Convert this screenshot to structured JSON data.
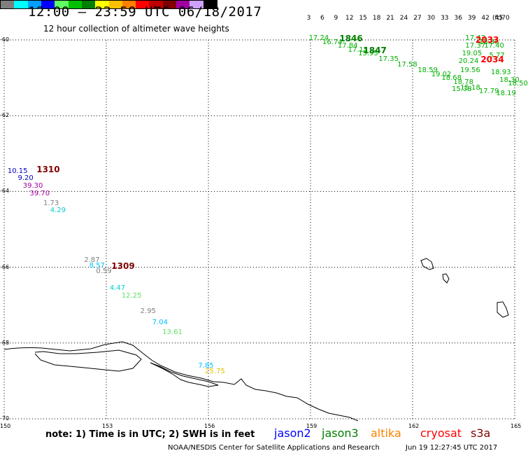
{
  "title": "12:00 – 23:59 UTC 06/18/2017",
  "subtitle": "12 hour collection of altimeter wave heights",
  "colorbar": {
    "unit": "(ft)",
    "ticks": [
      "3",
      "6",
      "9",
      "12",
      "15",
      "18",
      "21",
      "24",
      "27",
      "30",
      "33",
      "36",
      "39",
      "42",
      "45",
      "70"
    ],
    "colors": [
      "#7f7f7f",
      "#00ffff",
      "#00a0ff",
      "#0000ff",
      "#60ff60",
      "#00c000",
      "#008000",
      "#ffff00",
      "#ffc000",
      "#ff8000",
      "#ff0000",
      "#c00000",
      "#800000",
      "#a000a0",
      "#d0a0ff",
      "#000000"
    ]
  },
  "axes": {
    "lat_labels": [
      "-60",
      "-62",
      "-64",
      "-66",
      "-68",
      "-70"
    ],
    "lon_labels": [
      "150",
      "153",
      "156",
      "159",
      "162",
      "165"
    ]
  },
  "passes": [
    {
      "id": "1310",
      "color": "#800000",
      "lon": 150.95,
      "lat": -63.4
    },
    {
      "id": "1309",
      "color": "#800000",
      "lon": 153.15,
      "lat": -65.95
    },
    {
      "id": "1846",
      "color": "#008000",
      "lon": 159.85,
      "lat": -59.95
    },
    {
      "id": "1847",
      "color": "#008000",
      "lon": 160.55,
      "lat": -60.25
    },
    {
      "id": "2033",
      "color": "#ff0000",
      "lon": 163.85,
      "lat": -59.98
    },
    {
      "id": "2034",
      "color": "#ff0000",
      "lon": 164.0,
      "lat": -60.5
    }
  ],
  "wave_heights": [
    {
      "text": "10.15",
      "color": "#0000c0",
      "lon": 150.1,
      "lat": -63.45
    },
    {
      "text": "9.20",
      "color": "#0000c0",
      "lon": 150.4,
      "lat": -63.65
    },
    {
      "text": "39.30",
      "color": "#a000a0",
      "lon": 150.55,
      "lat": -63.85
    },
    {
      "text": "39.70",
      "color": "#a000a0",
      "lon": 150.75,
      "lat": -64.05
    },
    {
      "text": "1.73",
      "color": "#7f7f7f",
      "lon": 151.15,
      "lat": -64.3
    },
    {
      "text": "4.29",
      "color": "#00d0d0",
      "lon": 151.35,
      "lat": -64.5
    },
    {
      "text": "2.87",
      "color": "#7f7f7f",
      "lon": 152.35,
      "lat": -65.8
    },
    {
      "text": "8.57",
      "color": "#00c0ff",
      "lon": 152.5,
      "lat": -65.95
    },
    {
      "text": "0.59",
      "color": "#7f7f7f",
      "lon": 152.7,
      "lat": -66.1
    },
    {
      "text": "4.47",
      "color": "#00d0d0",
      "lon": 153.1,
      "lat": -66.55
    },
    {
      "text": "12.25",
      "color": "#60e060",
      "lon": 153.45,
      "lat": -66.75
    },
    {
      "text": "2.95",
      "color": "#7f7f7f",
      "lon": 154.0,
      "lat": -67.15
    },
    {
      "text": "7.04",
      "color": "#00c0ff",
      "lon": 154.35,
      "lat": -67.45
    },
    {
      "text": "13.61",
      "color": "#60e060",
      "lon": 154.65,
      "lat": -67.7
    },
    {
      "text": "7.85",
      "color": "#00c0ff",
      "lon": 155.7,
      "lat": -68.6
    },
    {
      "text": "25.75",
      "color": "#e0c000",
      "lon": 155.9,
      "lat": -68.75
    },
    {
      "text": "17.24",
      "color": "#00b000",
      "lon": 158.95,
      "lat": -59.95
    },
    {
      "text": "16.74",
      "color": "#00b000",
      "lon": 159.35,
      "lat": -60.05
    },
    {
      "text": "17.84",
      "color": "#00b000",
      "lon": 159.8,
      "lat": -60.15
    },
    {
      "text": "17.15",
      "color": "#00b000",
      "lon": 160.1,
      "lat": -60.25
    },
    {
      "text": "15.95",
      "color": "#00b000",
      "lon": 160.4,
      "lat": -60.35
    },
    {
      "text": "17.35",
      "color": "#00b000",
      "lon": 161.0,
      "lat": -60.5
    },
    {
      "text": "17.58",
      "color": "#00b000",
      "lon": 161.55,
      "lat": -60.65
    },
    {
      "text": "18.59",
      "color": "#00b000",
      "lon": 162.15,
      "lat": -60.8
    },
    {
      "text": "19.02",
      "color": "#00b000",
      "lon": 162.55,
      "lat": -60.9
    },
    {
      "text": "18.68",
      "color": "#00b000",
      "lon": 162.85,
      "lat": -61.0
    },
    {
      "text": "18.78",
      "color": "#00b000",
      "lon": 163.2,
      "lat": -61.1
    },
    {
      "text": "15.38",
      "color": "#00b000",
      "lon": 163.15,
      "lat": -61.3
    },
    {
      "text": "15.18",
      "color": "#00b000",
      "lon": 163.4,
      "lat": -61.25
    },
    {
      "text": "17.79",
      "color": "#00b000",
      "lon": 163.95,
      "lat": -61.35
    },
    {
      "text": "18.19",
      "color": "#00b000",
      "lon": 164.45,
      "lat": -61.4
    },
    {
      "text": "17.43",
      "color": "#00b000",
      "lon": 163.55,
      "lat": -59.95
    },
    {
      "text": "18.36",
      "color": "#00b000",
      "lon": 163.95,
      "lat": -60.05
    },
    {
      "text": "17.40",
      "color": "#00b000",
      "lon": 164.1,
      "lat": -60.15
    },
    {
      "text": "17.37",
      "color": "#00b000",
      "lon": 163.55,
      "lat": -60.15
    },
    {
      "text": "19.05",
      "color": "#00b000",
      "lon": 163.45,
      "lat": -60.35
    },
    {
      "text": "5.77",
      "color": "#00b000",
      "lon": 164.25,
      "lat": -60.4
    },
    {
      "text": "20.24",
      "color": "#00b000",
      "lon": 163.35,
      "lat": -60.55
    },
    {
      "text": "19.56",
      "color": "#00b000",
      "lon": 163.4,
      "lat": -60.8
    },
    {
      "text": "18.93",
      "color": "#00b000",
      "lon": 164.3,
      "lat": -60.85
    },
    {
      "text": "18.30",
      "color": "#00b000",
      "lon": 164.55,
      "lat": -61.05
    },
    {
      "text": "18.50",
      "color": "#00b000",
      "lon": 164.8,
      "lat": -61.15
    }
  ],
  "note": "note:  1) Time is in UTC;  2) SWH is in feet",
  "satellites": [
    {
      "name": "jason2",
      "color": "#0000ff"
    },
    {
      "name": "jason3",
      "color": "#008000"
    },
    {
      "name": "altika",
      "color": "#ff8000"
    },
    {
      "name": "cryosat",
      "color": "#ff0000"
    },
    {
      "name": "s3a",
      "color": "#800000"
    }
  ],
  "credit": "NOAA/NESDIS Center for Satellite Applications and Research",
  "timestamp": "Jun 19 12:27:45 UTC 2017"
}
